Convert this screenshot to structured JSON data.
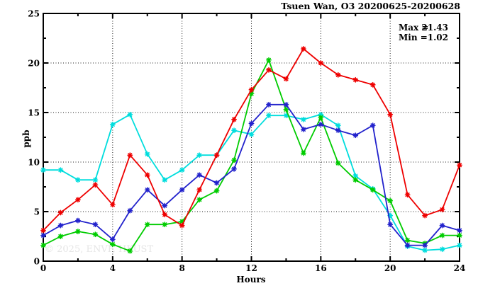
{
  "header": {
    "title": "Tsuen Wan, O3 20200625-20200628"
  },
  "annotation": {
    "max_label": "Max =",
    "max_value": "21.43",
    "min_label": "Min =",
    "min_value": "1.02"
  },
  "watermark": "© 2025, ENVF, HKUST",
  "axes": {
    "xlabel": "Hours",
    "ylabel": "ppb"
  },
  "colors": {
    "axis": "#000000",
    "grid": "#222222",
    "watermark": "#e5e5e5"
  },
  "chart_data": {
    "type": "line",
    "title": "Tsuen Wan, O3 20200625-20200628",
    "xlabel": "Hours",
    "ylabel": "ppb",
    "xlim": [
      0,
      24
    ],
    "ylim": [
      0,
      25
    ],
    "x_ticks_labeled": [
      0,
      4,
      8,
      12,
      16,
      20,
      24
    ],
    "x_ticks_minor": [
      2,
      6,
      10,
      14,
      18,
      22
    ],
    "y_ticks_labeled": [
      0,
      5,
      10,
      15,
      20,
      25
    ],
    "y_ticks_minor": [
      2.5,
      7.5,
      12.5,
      17.5,
      22.5
    ],
    "grid": {
      "style": "dotted",
      "x_at": [
        4,
        8,
        12,
        16,
        20
      ],
      "y_at": [
        5,
        10,
        15,
        20
      ]
    },
    "legend": "none",
    "marker": "asterisk",
    "stats": {
      "max": 21.43,
      "min": 1.02
    },
    "x": [
      0,
      1,
      2,
      3,
      4,
      5,
      6,
      7,
      8,
      9,
      10,
      11,
      12,
      13,
      14,
      15,
      16,
      17,
      18,
      19,
      20,
      21,
      22,
      23,
      24
    ],
    "series": [
      {
        "name": "cyan",
        "color": "#00dddd",
        "values": [
          9.2,
          9.2,
          8.2,
          8.2,
          13.8,
          14.8,
          10.8,
          8.2,
          9.2,
          10.7,
          10.7,
          13.2,
          12.8,
          14.7,
          14.7,
          14.3,
          14.8,
          13.7,
          8.6,
          7.3,
          4.6,
          1.5,
          1.1,
          1.2,
          1.6
        ]
      },
      {
        "name": "green",
        "color": "#00cc00",
        "values": [
          1.6,
          2.5,
          3.0,
          2.7,
          1.7,
          1.02,
          3.7,
          3.7,
          4.0,
          6.2,
          7.1,
          10.2,
          16.9,
          20.3,
          15.3,
          10.9,
          14.5,
          9.9,
          8.2,
          7.2,
          6.1,
          2.1,
          1.8,
          2.6,
          2.6
        ]
      },
      {
        "name": "blue",
        "color": "#2222cc",
        "values": [
          2.6,
          3.6,
          4.1,
          3.7,
          2.2,
          5.1,
          7.2,
          5.6,
          7.2,
          8.7,
          7.9,
          9.3,
          13.9,
          15.8,
          15.8,
          13.3,
          13.8,
          13.2,
          12.7,
          13.7,
          3.7,
          1.6,
          1.6,
          3.6,
          3.1
        ]
      },
      {
        "name": "red",
        "color": "#ee0000",
        "values": [
          3.1,
          4.9,
          6.2,
          7.7,
          5.7,
          10.7,
          8.7,
          4.7,
          3.6,
          7.2,
          10.7,
          14.3,
          17.3,
          19.3,
          18.4,
          21.43,
          20.0,
          18.8,
          18.3,
          17.8,
          14.8,
          6.7,
          4.6,
          5.2,
          9.7
        ]
      }
    ]
  }
}
